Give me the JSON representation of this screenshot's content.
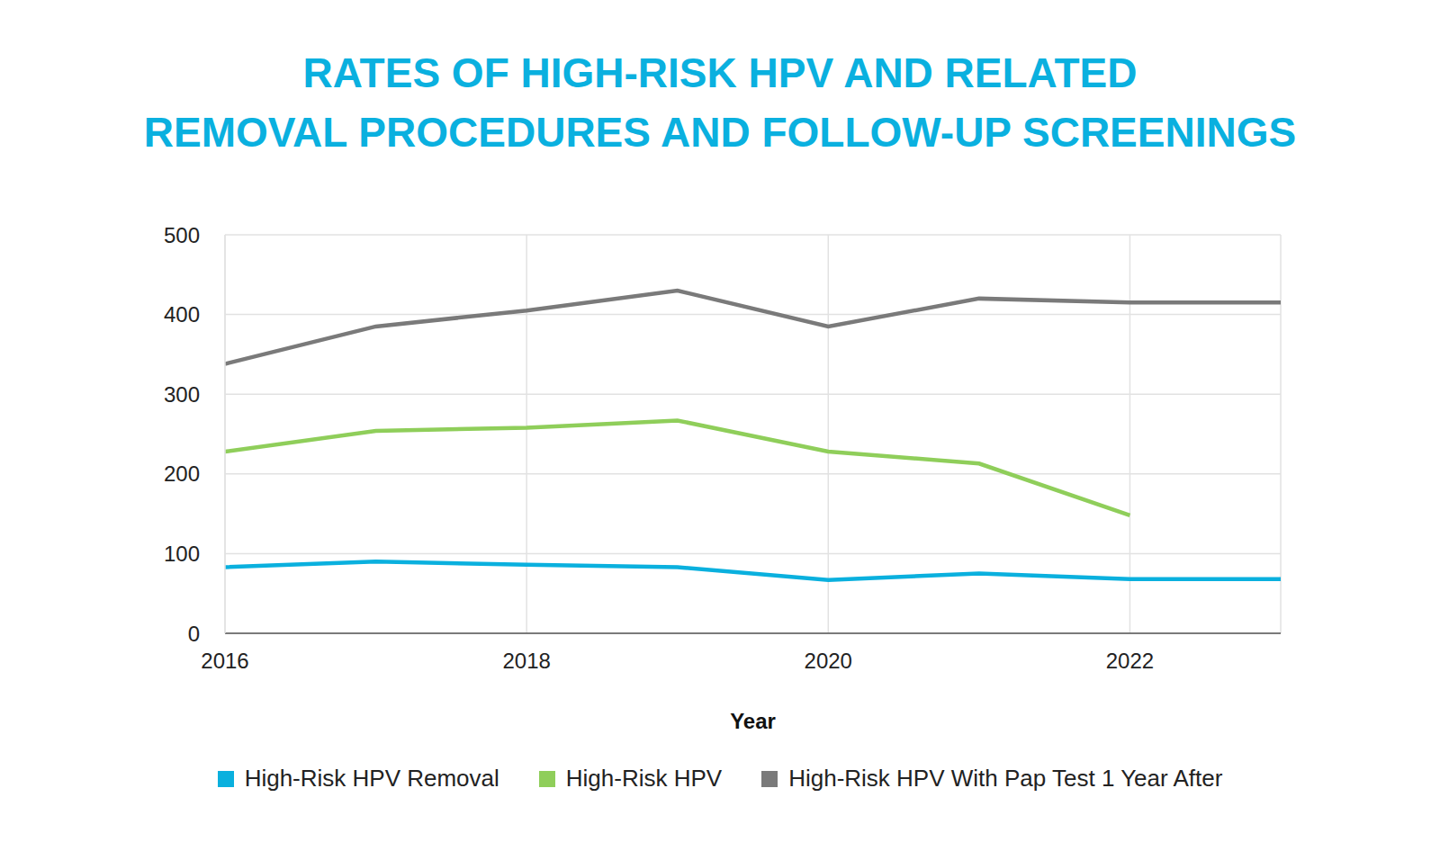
{
  "chart_data": {
    "type": "line",
    "title": "RATES OF HIGH-RISK HPV AND RELATED\nREMOVAL PROCEDURES AND FOLLOW-UP SCREENINGS",
    "xlabel": "Year",
    "x": [
      2016,
      2017,
      2018,
      2019,
      2020,
      2021,
      2022,
      2023
    ],
    "series": [
      {
        "name": "High-Risk HPV Removal",
        "color": "#0ab0de",
        "values": [
          83,
          90,
          86,
          83,
          67,
          75,
          68,
          68
        ]
      },
      {
        "name": "High-Risk HPV",
        "color": "#8fce5a",
        "values": [
          228,
          254,
          258,
          267,
          228,
          213,
          148,
          null
        ]
      },
      {
        "name": "High-Risk HPV With Pap Test 1 Year After",
        "color": "#7a7a7a",
        "values": [
          338,
          385,
          405,
          430,
          385,
          420,
          415,
          415
        ]
      }
    ],
    "xlim": [
      2016,
      2023
    ],
    "xticks": [
      2016,
      2018,
      2020,
      2022
    ],
    "ylim": [
      0,
      500
    ],
    "yticks": [
      0,
      100,
      200,
      300,
      400,
      500
    ],
    "grid": true,
    "legend": "bottom"
  }
}
